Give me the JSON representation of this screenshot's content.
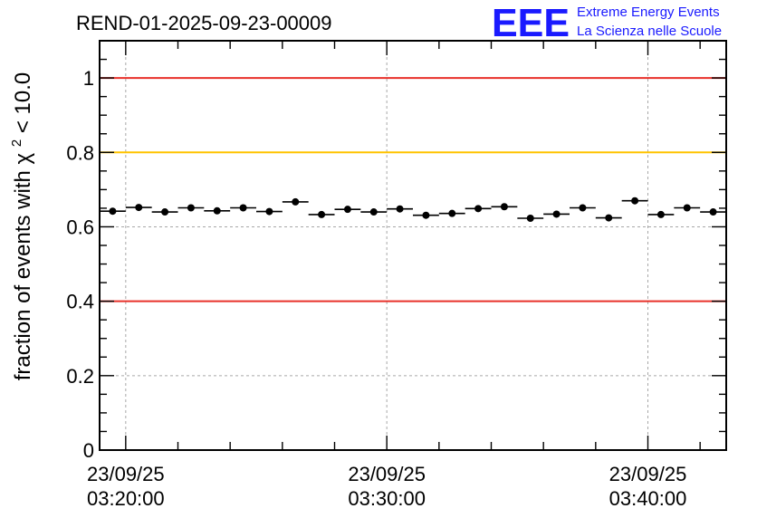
{
  "header": {
    "run_title": "REND-01-2025-09-23-00009"
  },
  "logo": {
    "letters": "EEE",
    "line1": "Extreme Energy Events",
    "line2": "La Scienza nelle Scuole",
    "color": "#1a1aff"
  },
  "chart_data": {
    "type": "scatter",
    "title": "REND-01-2025-09-23-00009",
    "ylabel": "fraction of events with",
    "ylabel_symbol": "χ",
    "ylabel_sup": "2",
    "ylabel_tail": " < 10.0",
    "xlabel": "",
    "ylim": [
      0,
      1.1
    ],
    "x_unit": "minutes after 23/09/25 03:19:00",
    "xlim_minutes": [
      0,
      24.0
    ],
    "y_ticks": [
      {
        "value": 0,
        "label": "0"
      },
      {
        "value": 0.2,
        "label": "0.2"
      },
      {
        "value": 0.4,
        "label": "0.4"
      },
      {
        "value": 0.6,
        "label": "0.6"
      },
      {
        "value": 0.8,
        "label": "0.8"
      },
      {
        "value": 1.0,
        "label": "1"
      }
    ],
    "x_ticks": [
      {
        "minute": 1,
        "date": "23/09/25",
        "time": "03:20:00"
      },
      {
        "minute": 11,
        "date": "23/09/25",
        "time": "03:30:00"
      },
      {
        "minute": 21,
        "date": "23/09/25",
        "time": "03:40:00"
      }
    ],
    "reference_lines": [
      {
        "y": 1.0,
        "color": "#e8302a"
      },
      {
        "y": 0.8,
        "color": "#ffc300"
      },
      {
        "y": 0.4,
        "color": "#e8302a"
      }
    ],
    "grid": true,
    "bin_minutes": 1.0,
    "points": [
      {
        "x": 0.5,
        "y": 0.642
      },
      {
        "x": 1.5,
        "y": 0.652
      },
      {
        "x": 2.5,
        "y": 0.64
      },
      {
        "x": 3.5,
        "y": 0.651
      },
      {
        "x": 4.5,
        "y": 0.643
      },
      {
        "x": 5.5,
        "y": 0.651
      },
      {
        "x": 6.5,
        "y": 0.641
      },
      {
        "x": 7.5,
        "y": 0.667
      },
      {
        "x": 8.5,
        "y": 0.633
      },
      {
        "x": 9.5,
        "y": 0.647
      },
      {
        "x": 10.5,
        "y": 0.64
      },
      {
        "x": 11.5,
        "y": 0.648
      },
      {
        "x": 12.5,
        "y": 0.631
      },
      {
        "x": 13.5,
        "y": 0.636
      },
      {
        "x": 14.5,
        "y": 0.649
      },
      {
        "x": 15.5,
        "y": 0.654
      },
      {
        "x": 16.5,
        "y": 0.623
      },
      {
        "x": 17.5,
        "y": 0.634
      },
      {
        "x": 18.5,
        "y": 0.651
      },
      {
        "x": 19.5,
        "y": 0.624
      },
      {
        "x": 20.5,
        "y": 0.67
      },
      {
        "x": 21.5,
        "y": 0.633
      },
      {
        "x": 22.5,
        "y": 0.651
      },
      {
        "x": 23.5,
        "y": 0.64
      }
    ]
  }
}
